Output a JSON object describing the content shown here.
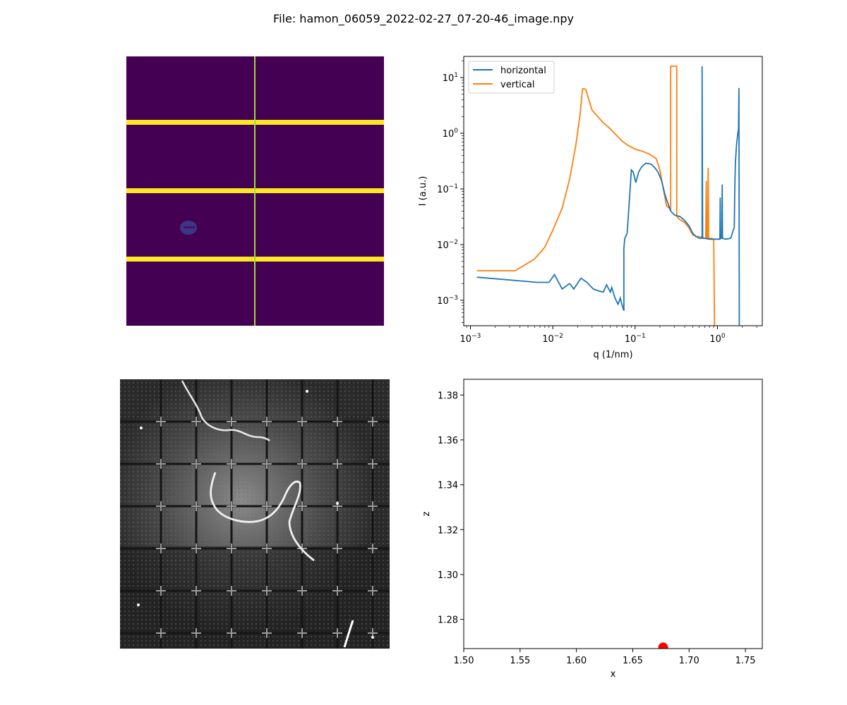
{
  "figure": {
    "title": "File: hamon_06059_2022-02-27_07-20-46_image.npy"
  },
  "colors": {
    "horizontal": "#1f77b4",
    "vertical": "#ff7f0e",
    "point": "#ff0000",
    "detector_background": "#440154",
    "detector_gaps": "#fde725",
    "detector_beamline": "#a0da39"
  },
  "panels": {
    "detector_image": {
      "type": "heatmap",
      "colormap": "viridis"
    },
    "camera_image": {
      "type": "image",
      "colormap": "gray"
    }
  },
  "chart_data": [
    {
      "type": "line",
      "xlabel": "q (1/nm)",
      "ylabel": "I (a.u.)",
      "xscale": "log",
      "yscale": "log",
      "xlim": [
        0.00083,
        3.5
      ],
      "ylim": [
        0.00035,
        24
      ],
      "xticks": [
        0.001,
        0.01,
        0.1,
        1
      ],
      "xtick_labels": [
        {
          "base": "10",
          "exp": "−3"
        },
        {
          "base": "10",
          "exp": "−2"
        },
        {
          "base": "10",
          "exp": "−1"
        },
        {
          "base": "10",
          "exp": "0"
        }
      ],
      "yticks": [
        0.001,
        0.01,
        0.1,
        1,
        10
      ],
      "ytick_labels": [
        {
          "base": "10",
          "exp": "−3"
        },
        {
          "base": "10",
          "exp": "−2"
        },
        {
          "base": "10",
          "exp": "−1"
        },
        {
          "base": "10",
          "exp": "0"
        },
        {
          "base": "10",
          "exp": "1"
        }
      ],
      "legend": "upper-left",
      "series": [
        {
          "name": "horizontal",
          "color": "#1f77b4",
          "points": [
            [
              0.0012,
              0.0026
            ],
            [
              0.0065,
              0.0021
            ],
            [
              0.009,
              0.0021
            ],
            [
              0.0105,
              0.0029
            ],
            [
              0.013,
              0.0016
            ],
            [
              0.016,
              0.002
            ],
            [
              0.018,
              0.0016
            ],
            [
              0.022,
              0.0025
            ],
            [
              0.026,
              0.0021
            ],
            [
              0.031,
              0.0016
            ],
            [
              0.035,
              0.0015
            ],
            [
              0.041,
              0.0014
            ],
            [
              0.045,
              0.0019
            ],
            [
              0.05,
              0.0014
            ],
            [
              0.052,
              0.0017
            ],
            [
              0.057,
              0.0011
            ],
            [
              0.062,
              0.00085
            ],
            [
              0.066,
              0.0011
            ],
            [
              0.069,
              0.00085
            ],
            [
              0.073,
              0.00065
            ],
            [
              0.073,
              0.0085
            ],
            [
              0.075,
              0.013
            ],
            [
              0.08,
              0.016
            ],
            [
              0.085,
              0.06
            ],
            [
              0.09,
              0.22
            ],
            [
              0.095,
              0.2
            ],
            [
              0.102,
              0.13
            ],
            [
              0.11,
              0.2
            ],
            [
              0.12,
              0.25
            ],
            [
              0.135,
              0.29
            ],
            [
              0.155,
              0.28
            ],
            [
              0.17,
              0.25
            ],
            [
              0.19,
              0.2
            ],
            [
              0.21,
              0.14
            ],
            [
              0.23,
              0.08
            ],
            [
              0.25,
              0.055
            ],
            [
              0.27,
              0.04
            ],
            [
              0.3,
              0.034
            ],
            [
              0.35,
              0.032
            ],
            [
              0.4,
              0.027
            ],
            [
              0.45,
              0.022
            ],
            [
              0.5,
              0.016
            ],
            [
              0.55,
              0.014
            ],
            [
              0.6,
              0.013
            ],
            [
              0.65,
              0.013
            ],
            [
              0.65,
              16
            ],
            [
              0.66,
              0.013
            ],
            [
              0.7,
              0.013
            ],
            [
              0.8,
              0.0125
            ],
            [
              0.9,
              0.0125
            ],
            [
              1.0,
              0.0125
            ],
            [
              1.07,
              0.0125
            ],
            [
              1.08,
              0.07
            ],
            [
              1.09,
              0.013
            ],
            [
              1.13,
              0.013
            ],
            [
              1.14,
              0.12
            ],
            [
              1.15,
              0.013
            ],
            [
              1.25,
              0.0125
            ],
            [
              1.45,
              0.013
            ],
            [
              1.55,
              0.018
            ],
            [
              1.6,
              0.02
            ],
            [
              1.62,
              0.1
            ],
            [
              1.65,
              0.3
            ],
            [
              1.7,
              0.6
            ],
            [
              1.75,
              0.9
            ],
            [
              1.8,
              1.2
            ],
            [
              1.82,
              6.5
            ],
            [
              1.84,
              0.00035
            ]
          ]
        },
        {
          "name": "vertical",
          "color": "#ff7f0e",
          "points": [
            [
              0.0012,
              0.0034
            ],
            [
              0.0035,
              0.0034
            ],
            [
              0.006,
              0.0055
            ],
            [
              0.008,
              0.009
            ],
            [
              0.01,
              0.018
            ],
            [
              0.013,
              0.045
            ],
            [
              0.016,
              0.15
            ],
            [
              0.019,
              0.6
            ],
            [
              0.0215,
              2.2
            ],
            [
              0.023,
              6.3
            ],
            [
              0.025,
              6.2
            ],
            [
              0.03,
              2.6
            ],
            [
              0.04,
              1.6
            ],
            [
              0.05,
              1.2
            ],
            [
              0.06,
              0.9
            ],
            [
              0.07,
              0.72
            ],
            [
              0.08,
              0.62
            ],
            [
              0.1,
              0.52
            ],
            [
              0.12,
              0.48
            ],
            [
              0.15,
              0.42
            ],
            [
              0.18,
              0.35
            ],
            [
              0.2,
              0.22
            ],
            [
              0.22,
              0.1
            ],
            [
              0.24,
              0.05
            ],
            [
              0.26,
              0.045
            ],
            [
              0.27,
              0.043
            ],
            [
              0.27,
              16
            ],
            [
              0.32,
              16
            ],
            [
              0.32,
              0.032
            ],
            [
              0.35,
              0.028
            ],
            [
              0.4,
              0.025
            ],
            [
              0.45,
              0.02
            ],
            [
              0.5,
              0.015
            ],
            [
              0.55,
              0.014
            ],
            [
              0.6,
              0.014
            ],
            [
              0.7,
              0.013
            ],
            [
              0.72,
              0.013
            ],
            [
              0.73,
              0.14
            ],
            [
              0.74,
              0.013
            ],
            [
              0.76,
              0.013
            ],
            [
              0.77,
              0.24
            ],
            [
              0.78,
              0.013
            ],
            [
              0.85,
              0.013
            ],
            [
              0.9,
              0.0125
            ],
            [
              0.92,
              0.00035
            ]
          ]
        }
      ]
    },
    {
      "type": "scatter",
      "xlabel": "x",
      "ylabel": "z",
      "xlim": [
        1.5,
        1.765
      ],
      "ylim": [
        1.267,
        1.387
      ],
      "xticks": [
        1.5,
        1.55,
        1.6,
        1.65,
        1.7,
        1.75
      ],
      "xtick_labels": [
        "1.50",
        "1.55",
        "1.60",
        "1.65",
        "1.70",
        "1.75"
      ],
      "yticks": [
        1.28,
        1.3,
        1.32,
        1.34,
        1.36,
        1.38
      ],
      "ytick_labels": [
        "1.28",
        "1.30",
        "1.32",
        "1.34",
        "1.36",
        "1.38"
      ],
      "points": [
        {
          "x": 1.677,
          "y": 1.2675
        }
      ],
      "marker_color": "#ff0000"
    }
  ]
}
